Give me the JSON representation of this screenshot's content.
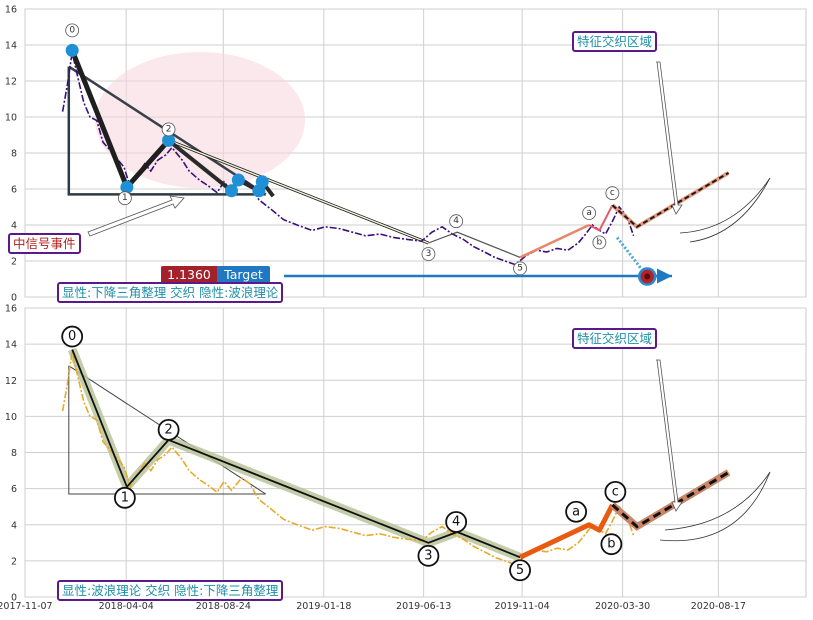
{
  "chart_data": [
    {
      "type": "line",
      "panel": "top",
      "title": "",
      "xlabel": "",
      "ylabel": "",
      "ylim": [
        0,
        16
      ],
      "yticks": [
        0,
        2,
        4,
        6,
        8,
        10,
        12,
        14,
        16
      ],
      "grid": true,
      "series": [
        {
          "style": "price (dash-dot, indigo)",
          "x": [
            "2018-01-01",
            "2018-01-08",
            "2018-01-15",
            "2018-01-22",
            "2018-02-01",
            "2018-02-10",
            "2018-02-20",
            "2018-03-01",
            "2018-03-15",
            "2018-04-01",
            "2018-04-10",
            "2018-04-20",
            "2018-05-01",
            "2018-05-10",
            "2018-05-20",
            "2018-06-01",
            "2018-06-10",
            "2018-06-25",
            "2018-07-05",
            "2018-07-20",
            "2018-08-01",
            "2018-08-15",
            "2018-08-25",
            "2018-09-05",
            "2018-09-20",
            "2018-10-01",
            "2018-10-15",
            "2018-11-01",
            "2018-11-20",
            "2018-12-10",
            "2019-01-01",
            "2019-01-20",
            "2019-02-10",
            "2019-03-01",
            "2019-03-20",
            "2019-04-10",
            "2019-05-01",
            "2019-05-20",
            "2019-06-10",
            "2019-06-25",
            "2019-07-10",
            "2019-07-25",
            "2019-08-10",
            "2019-08-25",
            "2019-09-10",
            "2019-09-25",
            "2019-10-10",
            "2019-10-25",
            "2019-11-10",
            "2019-11-25",
            "2019-12-10",
            "2019-12-25",
            "2020-01-10",
            "2020-01-25",
            "2020-02-05",
            "2020-02-15",
            "2020-02-25",
            "2020-03-05",
            "2020-03-15",
            "2020-03-25",
            "2020-04-05",
            "2020-04-15"
          ],
          "y": [
            10.3,
            11.8,
            13.6,
            12.4,
            10.8,
            10.0,
            9.8,
            8.6,
            8.0,
            7.2,
            6.1,
            6.8,
            7.4,
            7.0,
            7.6,
            7.9,
            8.3,
            7.6,
            7.0,
            6.5,
            6.2,
            5.8,
            6.4,
            5.9,
            6.6,
            6.3,
            5.4,
            4.9,
            4.3,
            4.0,
            3.7,
            3.9,
            3.8,
            3.6,
            3.4,
            3.5,
            3.3,
            3.2,
            3.1,
            3.6,
            3.9,
            3.5,
            3.2,
            2.8,
            2.5,
            2.2,
            2.0,
            1.8,
            2.3,
            2.6,
            2.5,
            2.7,
            2.6,
            3.0,
            3.5,
            4.0,
            3.7,
            3.5,
            4.2,
            5.0,
            4.5,
            3.4
          ]
        }
      ],
      "wave_points": [
        {
          "label": "0",
          "x": "2018-01-15",
          "y": 13.7
        },
        {
          "label": "1",
          "x": "2018-04-05",
          "y": 6.1
        },
        {
          "label": "2",
          "x": "2018-06-05",
          "y": 8.7
        },
        {
          "label": "3",
          "x": "2019-06-20",
          "y": 3.0
        },
        {
          "label": "4",
          "x": "2019-08-01",
          "y": 3.6
        },
        {
          "label": "5",
          "x": "2019-11-01",
          "y": 2.2
        },
        {
          "label": "a",
          "x": "2020-02-10",
          "y": 4.0
        },
        {
          "label": "b",
          "x": "2020-02-25",
          "y": 3.7
        },
        {
          "label": "c",
          "x": "2020-03-15",
          "y": 5.1
        }
      ],
      "projection": [
        {
          "x": "2020-03-15",
          "y": 5.1
        },
        {
          "x": "2020-04-20",
          "y": 3.9
        },
        {
          "x": "2020-09-01",
          "y": 6.9
        }
      ],
      "target_point": {
        "x": "2020-05-05",
        "y": 1.136
      },
      "annotations": {
        "feature_zone": "特征交织区域",
        "signal_event": "中信号事件",
        "target_value": "1.1360",
        "target_label": "Target",
        "bottom_note": "显性:下降三角整理 交织 隐性:波浪理论"
      }
    },
    {
      "type": "line",
      "panel": "bottom",
      "title": "",
      "xlabel": "",
      "ylabel": "",
      "ylim": [
        0,
        16
      ],
      "yticks": [
        0,
        2,
        4,
        6,
        8,
        10,
        12,
        14,
        16
      ],
      "xticks": [
        "2017-11-07",
        "2018-04-04",
        "2018-08-24",
        "2019-01-18",
        "2019-06-13",
        "2019-11-04",
        "2020-03-30",
        "2020-08-17"
      ],
      "grid": true,
      "series": [
        {
          "style": "price (dash-dot, gold)",
          "x": [
            "2018-01-01",
            "2018-01-08",
            "2018-01-15",
            "2018-01-22",
            "2018-02-01",
            "2018-02-10",
            "2018-02-20",
            "2018-03-01",
            "2018-03-15",
            "2018-04-01",
            "2018-04-10",
            "2018-04-20",
            "2018-05-01",
            "2018-05-10",
            "2018-05-20",
            "2018-06-01",
            "2018-06-10",
            "2018-06-25",
            "2018-07-05",
            "2018-07-20",
            "2018-08-01",
            "2018-08-15",
            "2018-08-25",
            "2018-09-05",
            "2018-09-20",
            "2018-10-01",
            "2018-10-15",
            "2018-11-01",
            "2018-11-20",
            "2018-12-10",
            "2019-01-01",
            "2019-01-20",
            "2019-02-10",
            "2019-03-01",
            "2019-03-20",
            "2019-04-10",
            "2019-05-01",
            "2019-05-20",
            "2019-06-10",
            "2019-06-25",
            "2019-07-10",
            "2019-07-25",
            "2019-08-10",
            "2019-08-25",
            "2019-09-10",
            "2019-09-25",
            "2019-10-10",
            "2019-10-25",
            "2019-11-10",
            "2019-11-25",
            "2019-12-10",
            "2019-12-25",
            "2020-01-10",
            "2020-01-25",
            "2020-02-05",
            "2020-02-15",
            "2020-02-25",
            "2020-03-05",
            "2020-03-15",
            "2020-03-25",
            "2020-04-05",
            "2020-04-15"
          ],
          "y": [
            10.3,
            11.8,
            13.6,
            12.4,
            10.8,
            10.0,
            9.8,
            8.6,
            8.0,
            7.2,
            6.1,
            6.8,
            7.4,
            7.0,
            7.6,
            7.9,
            8.3,
            7.6,
            7.0,
            6.5,
            6.2,
            5.8,
            6.4,
            5.9,
            6.6,
            6.3,
            5.4,
            4.9,
            4.3,
            4.0,
            3.7,
            3.9,
            3.8,
            3.6,
            3.4,
            3.5,
            3.3,
            3.2,
            3.1,
            3.6,
            3.9,
            3.5,
            3.2,
            2.8,
            2.5,
            2.2,
            2.0,
            1.8,
            2.3,
            2.6,
            2.5,
            2.7,
            2.6,
            3.0,
            3.5,
            4.0,
            3.7,
            3.5,
            4.2,
            5.0,
            4.5,
            3.4
          ]
        }
      ],
      "wave_points": [
        {
          "label": "0",
          "x": "2018-01-15",
          "y": 13.7
        },
        {
          "label": "1",
          "x": "2018-04-05",
          "y": 6.1
        },
        {
          "label": "2",
          "x": "2018-06-05",
          "y": 8.7
        },
        {
          "label": "3",
          "x": "2019-06-20",
          "y": 3.0
        },
        {
          "label": "4",
          "x": "2019-08-01",
          "y": 3.6
        },
        {
          "label": "5",
          "x": "2019-11-01",
          "y": 2.2
        },
        {
          "label": "a",
          "x": "2020-02-10",
          "y": 4.0
        },
        {
          "label": "b",
          "x": "2020-02-25",
          "y": 3.7
        },
        {
          "label": "c",
          "x": "2020-03-15",
          "y": 5.1
        }
      ],
      "projection": [
        {
          "x": "2020-03-15",
          "y": 5.1
        },
        {
          "x": "2020-04-20",
          "y": 3.9
        },
        {
          "x": "2020-09-01",
          "y": 6.9
        }
      ],
      "annotations": {
        "feature_zone": "特征交织区域",
        "bottom_note": "显性:波浪理论 交织 隐性:下降三角整理"
      }
    }
  ],
  "colors": {
    "price_top": "#3a0f7a",
    "price_bottom": "#e8a927",
    "wave_dark": "#1f1f1f",
    "marker_blue": "#1f8fd6",
    "orange": "#e85a10",
    "salmon": "#e8876a",
    "grid": "#cfcfcf",
    "box_border": "#5b1a8a",
    "teal_text": "#1f8fa8",
    "red_text": "#b0201c",
    "target_red": "#a3212a",
    "target_blue": "#1f78c1"
  }
}
